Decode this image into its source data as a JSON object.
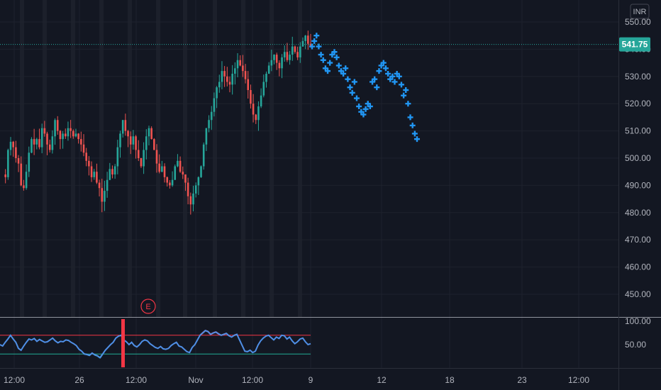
{
  "currency": "INR",
  "last_price_label": "541.75",
  "colors": {
    "background": "#131722",
    "grid": "#1e222d",
    "up": "#26a69a",
    "down": "#ef5350",
    "forecast": "#2196f3",
    "rsi_line": "#4f8fe6",
    "rsi_upper": "#f23645",
    "rsi_lower": "#22ab94",
    "axis_text": "#b2b5be",
    "price_tag": "#26a69a"
  },
  "earnings_marker": "E",
  "chart_data": [
    {
      "type": "candlestick",
      "title": "",
      "y_ticks": [
        "550.00",
        "540.00",
        "530.00",
        "520.00",
        "510.00",
        "500.00",
        "490.00",
        "480.00",
        "470.00",
        "460.00",
        "450.00"
      ],
      "y_tick_values": [
        550,
        540,
        530,
        520,
        510,
        500,
        490,
        480,
        470,
        460,
        450
      ],
      "ylim": [
        446,
        553
      ],
      "x_ticks": [
        "12:00",
        "26",
        "12:00",
        "Nov",
        "12:00",
        "9",
        "12",
        "18",
        "23",
        "12:00"
      ],
      "last_price": 541.75,
      "grid": true,
      "price_path": [
        494,
        493,
        503,
        506,
        504,
        500,
        498,
        490,
        489,
        495,
        502,
        507,
        505,
        507,
        504,
        511,
        509,
        505,
        503,
        508,
        514,
        510,
        507,
        509,
        508,
        511,
        510,
        508,
        509,
        507,
        505,
        502,
        499,
        497,
        493,
        495,
        491,
        489,
        484,
        488,
        492,
        496,
        494,
        497,
        504,
        509,
        514,
        510,
        508,
        505,
        508,
        503,
        500,
        497,
        503,
        508,
        511,
        507,
        503,
        498,
        495,
        497,
        493,
        491,
        490,
        492,
        497,
        499,
        495,
        494,
        491,
        486,
        483,
        487,
        490,
        493,
        497,
        505,
        511,
        514,
        517,
        522,
        526,
        528,
        532,
        530,
        528,
        527,
        531,
        533,
        536,
        534,
        532,
        529,
        525,
        520,
        516,
        514,
        519,
        523,
        528,
        531,
        534,
        536,
        538,
        535,
        533,
        537,
        539,
        536,
        538,
        541,
        539,
        537,
        541,
        543,
        545,
        542,
        541
      ],
      "forecast_path": [
        541,
        543,
        545,
        541,
        538,
        536,
        533,
        532,
        535,
        538,
        539,
        537,
        534,
        532,
        531,
        533,
        529,
        526,
        524,
        528,
        522,
        519,
        517,
        516,
        518,
        520,
        519,
        528,
        529,
        526,
        532,
        534,
        535,
        533,
        531,
        529,
        530,
        528,
        531,
        530,
        527,
        523,
        525,
        520,
        515,
        512,
        509,
        507
      ]
    },
    {
      "type": "line",
      "title": "",
      "y_ticks": [
        "100.00",
        "50.00"
      ],
      "y_tick_values": [
        100,
        50
      ],
      "ylim": [
        -5,
        105
      ],
      "upper_band": 70,
      "lower_band": 30,
      "values": [
        50,
        47,
        55,
        62,
        70,
        62,
        55,
        42,
        38,
        47,
        55,
        62,
        60,
        63,
        57,
        61,
        58,
        55,
        56,
        60,
        64,
        58,
        54,
        57,
        56,
        60,
        59,
        55,
        52,
        48,
        40,
        36,
        30,
        29,
        27,
        32,
        28,
        26,
        22,
        30,
        38,
        44,
        50,
        55,
        64,
        68,
        70,
        60,
        56,
        50,
        55,
        48,
        45,
        50,
        57,
        60,
        58,
        52,
        48,
        44,
        42,
        46,
        41,
        40,
        42,
        48,
        52,
        55,
        47,
        45,
        40,
        35,
        33,
        44,
        50,
        60,
        70,
        75,
        80,
        78,
        72,
        75,
        77,
        73,
        70,
        72,
        74,
        69,
        66,
        70,
        72,
        60,
        48,
        36,
        35,
        38,
        33,
        36,
        49,
        58,
        64,
        68,
        70,
        65,
        60,
        66,
        63,
        70,
        69,
        62,
        66,
        58,
        52,
        56,
        62,
        64,
        56,
        50,
        52
      ]
    }
  ]
}
